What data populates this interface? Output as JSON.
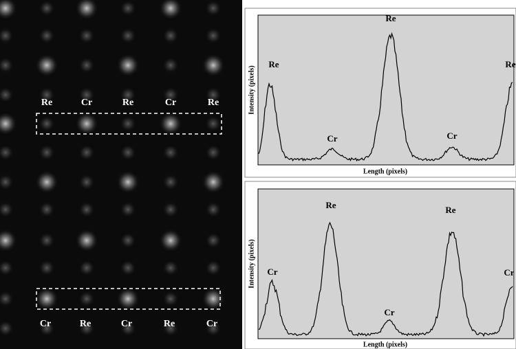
{
  "image": {
    "top_labels": [
      "Re",
      "Cr",
      "Re",
      "Cr",
      "Re"
    ],
    "bottom_labels": [
      "Cr",
      "Re",
      "Cr",
      "Re",
      "Cr"
    ]
  },
  "profiles": [
    {
      "y_label": "Intensity (pixels)",
      "x_label": "Length (pixels)",
      "peak_labels": [
        "Re",
        "Cr",
        "Re",
        "Cr",
        "Re"
      ]
    },
    {
      "y_label": "Intensity (pixels)",
      "x_label": "Length (pixels)",
      "peak_labels": [
        "Cr",
        "Re",
        "Cr",
        "Re",
        "Cr"
      ]
    }
  ]
}
